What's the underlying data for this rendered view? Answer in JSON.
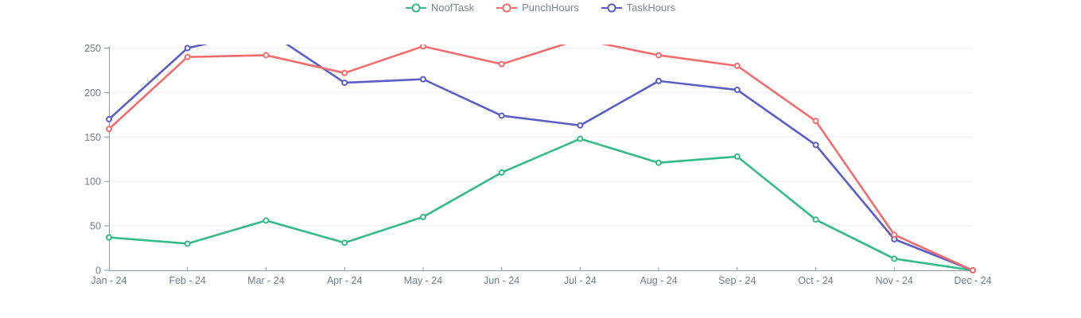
{
  "chart_data": {
    "type": "line",
    "title": "",
    "xlabel": "",
    "ylabel": "",
    "categories": [
      "Jan - 24",
      "Feb - 24",
      "Mar - 24",
      "Apr - 24",
      "May - 24",
      "Jun - 24",
      "Jul - 24",
      "Aug - 24",
      "Sep - 24",
      "Oct - 24",
      "Nov - 24",
      "Dec - 24"
    ],
    "series": [
      {
        "name": "NoofTask",
        "color": "#32bb87",
        "values": [
          37,
          30,
          56,
          31,
          60,
          110,
          148,
          121,
          128,
          57,
          13,
          0
        ]
      },
      {
        "name": "PunchHours",
        "color": "#f56c6c",
        "values": [
          159,
          240,
          242,
          222,
          252,
          232,
          260,
          242,
          230,
          168,
          40,
          0
        ]
      },
      {
        "name": "TaskHours",
        "color": "#5a5fc7",
        "values": [
          170,
          250,
          270,
          211,
          215,
          174,
          163,
          213,
          203,
          141,
          35,
          0
        ]
      }
    ],
    "ylim": [
      0,
      250
    ],
    "yticks": [
      0,
      50,
      100,
      150,
      200,
      250
    ],
    "grid": "horizontal",
    "legend_position": "top",
    "legend": [
      "NoofTask",
      "PunchHours",
      "TaskHours"
    ],
    "marker": "hollow-circle",
    "colors": {
      "grid_line": "#eef0f3",
      "axis_line": "#8f97a8",
      "axis_text": "#757c89",
      "legend_text": "#7f858f",
      "background": "#ffffff",
      "marker_fill": "#ffffff"
    }
  }
}
